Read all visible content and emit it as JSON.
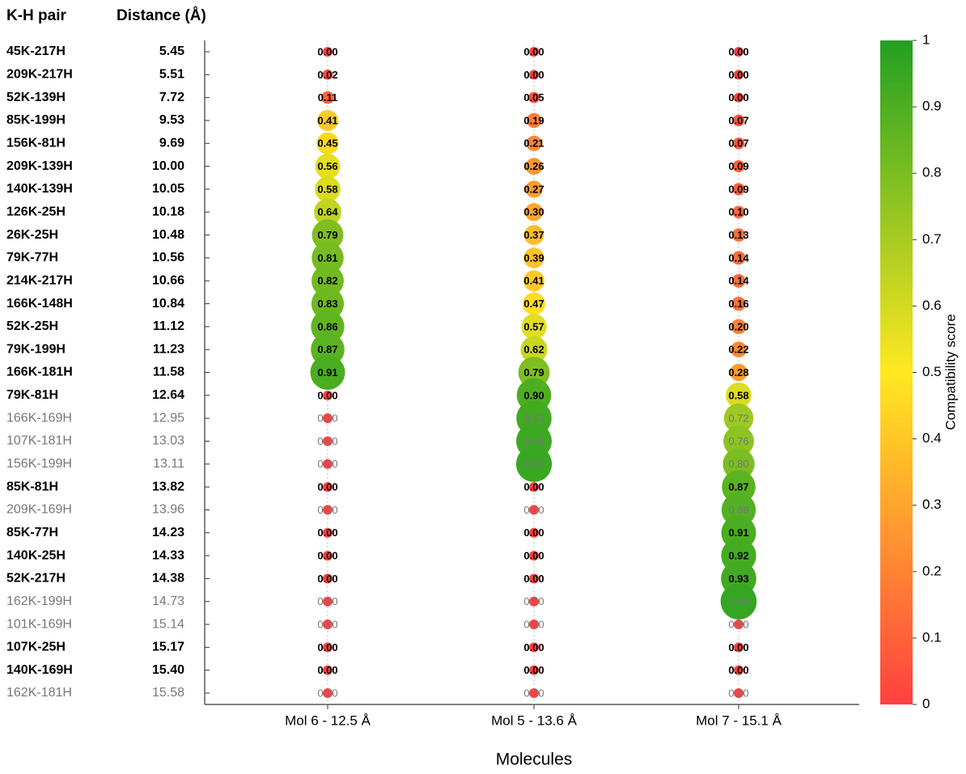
{
  "chart_data": {
    "type": "bubble",
    "row_header": "K-H pair",
    "distance_header": "Distance (Å)",
    "xlabel": "Molecules",
    "colorbar_title": "Compatibility score",
    "categories": [
      "45K-217H",
      "209K-217H",
      "52K-139H",
      "85K-199H",
      "156K-81H",
      "209K-139H",
      "140K-139H",
      "126K-25H",
      "26K-25H",
      "79K-77H",
      "214K-217H",
      "166K-148H",
      "52K-25H",
      "79K-199H",
      "166K-181H",
      "79K-81H",
      "166K-169H",
      "107K-181H",
      "156K-199H",
      "85K-81H",
      "209K-169H",
      "85K-77H",
      "140K-25H",
      "52K-217H",
      "162K-199H",
      "101K-169H",
      "107K-25H",
      "140K-169H",
      "162K-181H"
    ],
    "distances": [
      "5.45",
      "5.51",
      "7.72",
      "9.53",
      "9.69",
      "10.00",
      "10.05",
      "10.18",
      "10.48",
      "10.56",
      "10.66",
      "10.84",
      "11.12",
      "11.23",
      "11.58",
      "12.64",
      "12.95",
      "13.03",
      "13.11",
      "13.82",
      "13.96",
      "14.23",
      "14.33",
      "14.38",
      "14.73",
      "15.14",
      "15.17",
      "15.40",
      "15.58"
    ],
    "highlighted": [
      true,
      true,
      true,
      true,
      true,
      true,
      true,
      true,
      true,
      true,
      true,
      true,
      true,
      true,
      true,
      true,
      false,
      false,
      false,
      true,
      false,
      true,
      true,
      true,
      false,
      false,
      true,
      true,
      false
    ],
    "series": [
      {
        "name": "Mol 6 - 12.5 Å",
        "values": [
          0,
          0.02,
          0.11,
          0.41,
          0.45,
          0.56,
          0.58,
          0.64,
          0.79,
          0.81,
          0.82,
          0.83,
          0.86,
          0.87,
          0.91,
          0,
          0,
          0,
          0,
          0,
          0,
          0,
          0,
          0,
          0,
          0,
          0,
          0,
          0
        ],
        "value_labels": [
          "0.00",
          "0.02",
          "0.11",
          "0.41",
          "0.45",
          "0.56",
          "0.58",
          "0.64",
          "0.79",
          "0.81",
          "0.82",
          "0.83",
          "0.86",
          "0.87",
          "0.91",
          "0.00",
          "0.00",
          "0.00",
          "0.00",
          "0.00",
          "0.00",
          "0.00",
          "0.00",
          "0.00",
          "0.00",
          "0.00",
          "0.00",
          "0.00",
          "0.00"
        ]
      },
      {
        "name": "Mol 5 - 13.6 Å",
        "values": [
          0,
          0,
          0.05,
          0.19,
          0.21,
          0.26,
          0.27,
          0.3,
          0.37,
          0.39,
          0.41,
          0.47,
          0.57,
          0.62,
          0.79,
          0.9,
          0.93,
          0.94,
          0.95,
          0,
          0,
          0,
          0,
          0,
          0,
          0,
          0,
          0,
          0
        ],
        "value_labels": [
          "0.00",
          "0.00",
          "0.05",
          "0.19",
          "0.21",
          "0.26",
          "0.27",
          "0.30",
          "0.37",
          "0.39",
          "0.41",
          "0.47",
          "0.57",
          "0.62",
          "0.79",
          "0.90",
          "0.93",
          "0.94",
          "0.95",
          "0.00",
          "0.00",
          "0.00",
          "0.00",
          "0.00",
          "0.00",
          "0.00",
          "0.00",
          "0.00",
          "0.00"
        ]
      },
      {
        "name": "Mol 7 - 15.1 Å",
        "values": [
          0,
          0,
          0,
          0.07,
          0.07,
          0.09,
          0.09,
          0.1,
          0.13,
          0.14,
          0.14,
          0.16,
          0.2,
          0.22,
          0.28,
          0.58,
          0.72,
          0.76,
          0.8,
          0.87,
          0.89,
          0.91,
          0.92,
          0.93,
          0.96,
          0,
          0,
          0,
          0
        ],
        "value_labels": [
          "0.00",
          "0.00",
          "0.00",
          "0.07",
          "0.07",
          "0.09",
          "0.09",
          "0.10",
          "0.13",
          "0.14",
          "0.14",
          "0.16",
          "0.20",
          "0.22",
          "0.28",
          "0.58",
          "0.72",
          "0.76",
          "0.80",
          "0.87",
          "0.89",
          "0.91",
          "0.92",
          "0.93",
          "0.96",
          "0.00",
          "0.00",
          "0.00",
          "0.00"
        ]
      }
    ],
    "clim": [
      0,
      1
    ],
    "cticks": [
      0,
      0.1,
      0.2,
      0.3,
      0.4,
      0.5,
      0.6,
      0.7,
      0.8,
      0.9,
      1
    ],
    "colorscale": [
      "#ff4040",
      "#ffe820",
      "#22a022"
    ]
  }
}
